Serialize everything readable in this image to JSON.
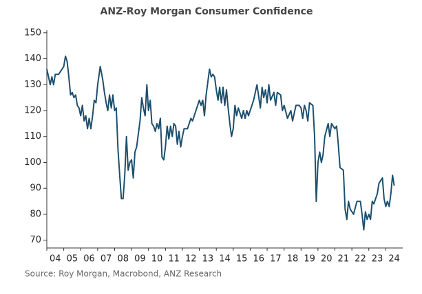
{
  "chart_data": {
    "type": "line",
    "title": "ANZ-Roy Morgan Consumer Confidence",
    "source": "Source: Roy Morgan, Macrobond, ANZ Research",
    "x": [
      4.0,
      4.1,
      4.2,
      4.3,
      4.4,
      4.5,
      4.7,
      4.9,
      5.0,
      5.1,
      5.2,
      5.3,
      5.4,
      5.5,
      5.6,
      5.7,
      5.8,
      5.9,
      6.0,
      6.1,
      6.2,
      6.3,
      6.4,
      6.5,
      6.6,
      6.7,
      6.8,
      6.9,
      7.0,
      7.15,
      7.3,
      7.4,
      7.5,
      7.6,
      7.7,
      7.8,
      7.9,
      8.0,
      8.1,
      8.2,
      8.3,
      8.4,
      8.5,
      8.6,
      8.7,
      8.8,
      8.9,
      9.0,
      9.1,
      9.2,
      9.3,
      9.5,
      9.6,
      9.7,
      9.8,
      9.9,
      10.0,
      10.1,
      10.2,
      10.3,
      10.4,
      10.5,
      10.6,
      10.7,
      10.8,
      10.9,
      11.0,
      11.1,
      11.2,
      11.3,
      11.4,
      11.5,
      11.6,
      11.7,
      11.8,
      11.9,
      12.0,
      12.1,
      12.3,
      12.5,
      12.6,
      12.8,
      13.0,
      13.1,
      13.2,
      13.3,
      13.4,
      13.5,
      13.6,
      13.7,
      13.8,
      13.9,
      14.0,
      14.1,
      14.2,
      14.3,
      14.4,
      14.5,
      14.6,
      14.7,
      14.8,
      14.9,
      15.0,
      15.1,
      15.2,
      15.3,
      15.4,
      15.5,
      15.6,
      15.7,
      15.8,
      15.9,
      16.0,
      16.2,
      16.4,
      16.6,
      16.7,
      16.8,
      16.9,
      17.0,
      17.1,
      17.2,
      17.4,
      17.5,
      17.6,
      17.8,
      17.9,
      18.0,
      18.2,
      18.4,
      18.5,
      18.7,
      18.9,
      19.0,
      19.1,
      19.2,
      19.3,
      19.4,
      19.5,
      19.7,
      19.8,
      19.9,
      20.0,
      20.1,
      20.2,
      20.3,
      20.4,
      20.6,
      20.7,
      20.8,
      21.0,
      21.1,
      21.2,
      21.3,
      21.5,
      21.6,
      21.7,
      21.8,
      21.9,
      22.1,
      22.3,
      22.5,
      22.6,
      22.7,
      22.8,
      22.9,
      23.0,
      23.1,
      23.2,
      23.3,
      23.5,
      23.6,
      23.7,
      23.8,
      23.9,
      24.0,
      24.1,
      24.2,
      24.3,
      24.4,
      24.5
    ],
    "series": [
      {
        "name": "ANZ-Roy Morgan Consumer Confidence",
        "color": "#1d4f6e",
        "values": [
          136,
          133,
          130,
          133,
          130,
          134,
          134,
          136,
          137,
          141,
          139,
          133,
          126,
          127,
          125,
          126,
          122,
          121,
          118,
          122,
          116,
          118,
          113,
          117,
          113,
          118,
          124,
          123,
          130,
          137,
          132,
          127,
          123,
          120,
          126,
          121,
          126,
          120,
          121,
          105,
          95,
          86,
          86,
          95,
          110,
          97,
          100,
          101,
          94,
          104,
          106,
          116,
          125,
          121,
          118,
          130,
          120,
          124,
          115,
          114,
          112,
          115,
          113,
          117,
          102,
          101,
          106,
          114,
          109,
          114,
          110,
          115,
          114,
          107,
          112,
          106,
          110,
          113,
          113,
          117,
          116,
          120,
          124,
          122,
          124,
          118,
          126,
          131,
          136,
          133,
          134,
          133,
          128,
          124,
          129,
          123,
          129,
          122,
          128,
          121,
          115,
          110,
          113,
          122,
          118,
          121,
          119,
          117,
          120,
          117,
          120,
          118,
          120,
          124,
          130,
          121,
          129,
          125,
          128,
          123,
          130,
          124,
          127,
          122,
          127,
          126,
          120,
          122,
          117,
          120,
          116,
          122,
          122,
          121,
          117,
          122,
          120,
          116,
          123,
          122,
          110,
          85,
          100,
          104,
          100,
          103,
          110,
          115,
          110,
          115,
          113,
          114,
          107,
          98,
          97,
          82,
          78,
          85,
          82,
          80,
          85,
          85,
          80,
          74,
          81,
          78,
          80,
          78,
          85,
          84,
          88,
          92,
          93,
          94,
          86,
          83,
          85,
          83,
          88,
          95,
          91
        ]
      }
    ],
    "xlim": [
      4,
      25
    ],
    "xticks": [
      {
        "value": 4,
        "label": "04"
      },
      {
        "value": 5,
        "label": "05"
      },
      {
        "value": 6,
        "label": "06"
      },
      {
        "value": 7,
        "label": "07"
      },
      {
        "value": 8,
        "label": "08"
      },
      {
        "value": 9,
        "label": "09"
      },
      10,
      11,
      12,
      13,
      14,
      15,
      16,
      17,
      18,
      19,
      20,
      21,
      22,
      23,
      24
    ],
    "ylim": [
      67,
      151
    ],
    "yticks": [
      70,
      80,
      90,
      100,
      110,
      120,
      130,
      140,
      150
    ]
  }
}
